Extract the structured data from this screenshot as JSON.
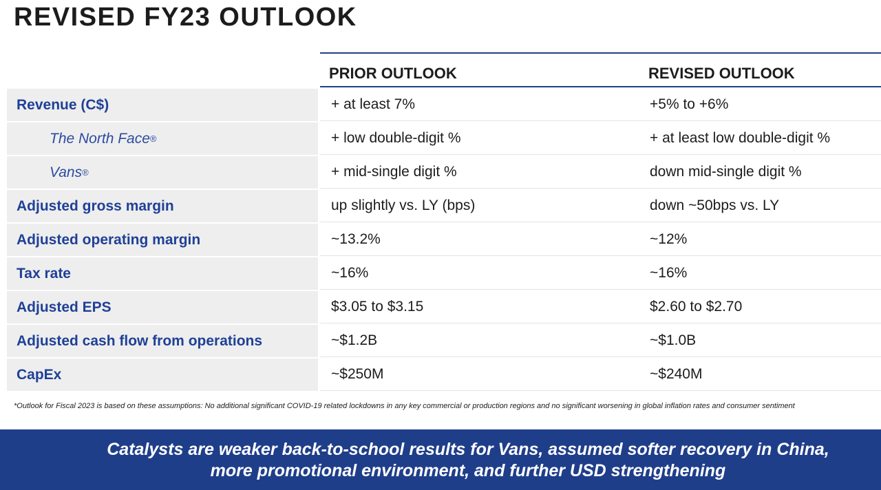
{
  "title": "REVISED FY23 OUTLOOK",
  "columns": {
    "prior": "PRIOR OUTLOOK",
    "revised": "REVISED OUTLOOK"
  },
  "rows": [
    {
      "label": "Revenue (C$)",
      "sub": false,
      "prior": "+ at least 7%",
      "revised": "+5% to +6%"
    },
    {
      "label": "The North Face",
      "mark": "®",
      "sub": true,
      "prior": "+ low double-digit %",
      "revised": "+ at least low double-digit %"
    },
    {
      "label": "Vans",
      "mark": "®",
      "sub": true,
      "prior": "+ mid-single digit %",
      "revised": "down mid-single digit %"
    },
    {
      "label": "Adjusted gross margin",
      "sub": false,
      "prior": "up slightly vs. LY (bps)",
      "revised": "down ~50bps vs. LY"
    },
    {
      "label": "Adjusted operating margin",
      "sub": false,
      "prior": "~13.2%",
      "revised": "~12%"
    },
    {
      "label": "Tax rate",
      "sub": false,
      "prior": "~16%",
      "revised": "~16%"
    },
    {
      "label": "Adjusted EPS",
      "sub": false,
      "prior": "$3.05 to $3.15",
      "revised": "$2.60 to $2.70"
    },
    {
      "label": "Adjusted cash flow from operations",
      "sub": false,
      "prior": "~$1.2B",
      "revised": "~$1.0B"
    },
    {
      "label": "CapEx",
      "sub": false,
      "prior": "~$250M",
      "revised": "~$240M"
    }
  ],
  "footnote": "*Outlook for Fiscal 2023 is based on these assumptions: No additional significant COVID-19 related lockdowns in any key commercial or production regions and no significant worsening in global inflation rates and consumer sentiment",
  "banner": {
    "line1": "Catalysts are weaker back-to-school results for Vans, assumed softer recovery in China,",
    "line2": "more promotional environment, and further USD strengthening"
  },
  "colors": {
    "accent": "#1f3e8a",
    "label_text": "#1f4096",
    "label_bg": "#eeeeee"
  }
}
